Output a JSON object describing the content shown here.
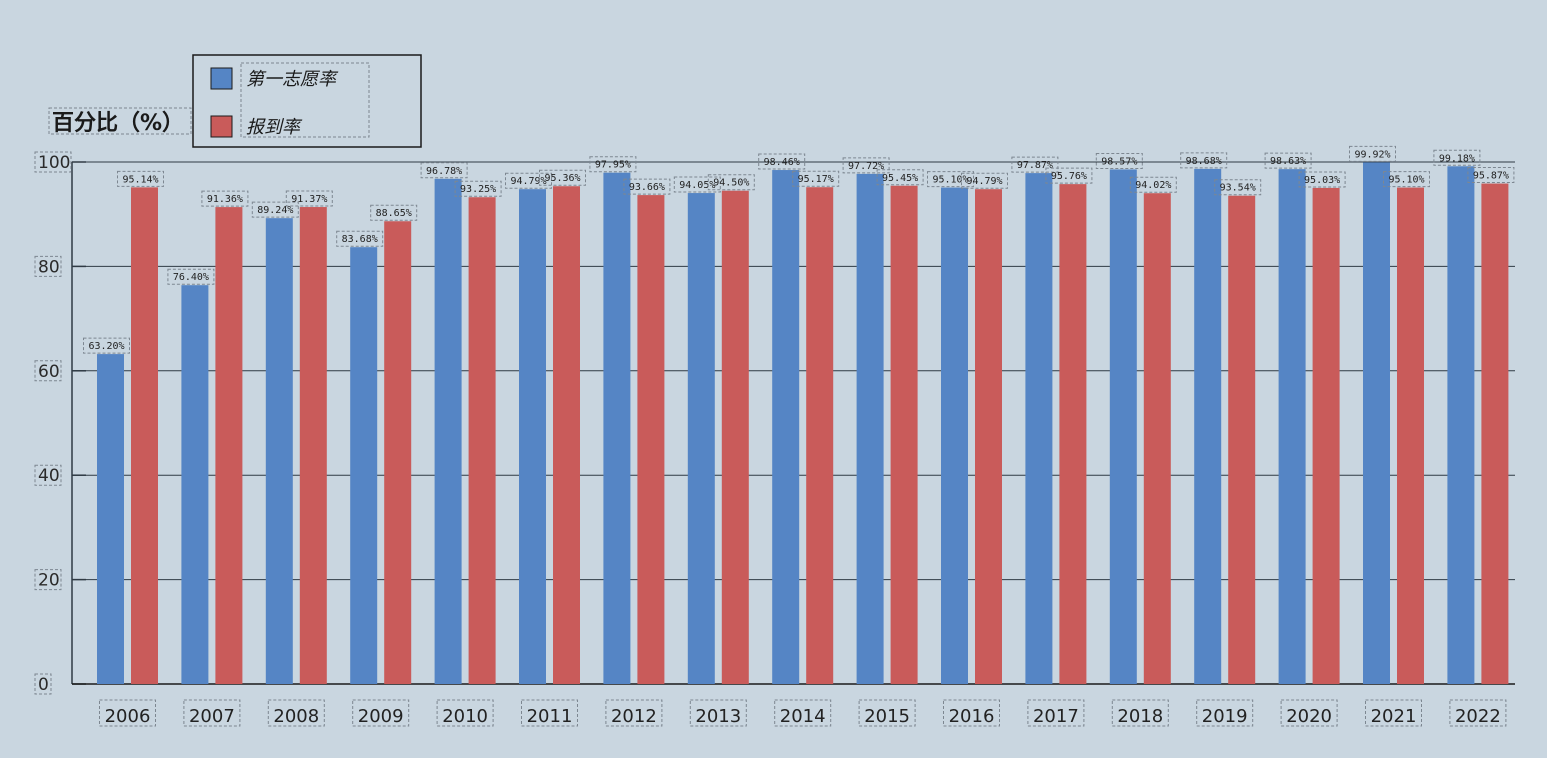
{
  "chart_data": {
    "type": "bar",
    "ylabel": "百分比（%）",
    "ylim": [
      0,
      100
    ],
    "yticks": [
      0,
      20,
      40,
      60,
      80,
      100
    ],
    "grid": true,
    "legend_position": "top-left",
    "categories": [
      "2006",
      "2007",
      "2008",
      "2009",
      "2010",
      "2011",
      "2012",
      "2013",
      "2014",
      "2015",
      "2016",
      "2017",
      "2018",
      "2019",
      "2020",
      "2021",
      "2022"
    ],
    "series": [
      {
        "name": "第一志愿率",
        "color": "#5585c5",
        "values": [
          63.2,
          76.4,
          89.24,
          83.68,
          96.78,
          94.79,
          97.95,
          94.05,
          98.46,
          97.72,
          95.1,
          97.87,
          98.57,
          98.68,
          98.63,
          99.92,
          99.18
        ],
        "labels": [
          "63.20%",
          "76.40%",
          "89.24%",
          "83.68%",
          "96.78%",
          "94.79%",
          "97.95%",
          "94.05%",
          "98.46%",
          "97.72%",
          "95.10%",
          "97.87%",
          "98.57%",
          "98.68%",
          "98.63%",
          "99.92%",
          "99.18%"
        ]
      },
      {
        "name": "报到率",
        "color": "#c95b5a",
        "values": [
          95.14,
          91.36,
          91.37,
          88.65,
          93.25,
          95.36,
          93.66,
          94.5,
          95.17,
          95.45,
          94.79,
          95.76,
          94.02,
          93.54,
          95.03,
          95.1,
          95.87
        ],
        "labels": [
          "95.14%",
          "91.36%",
          "91.37%",
          "88.65%",
          "93.25%",
          "95.36%",
          "93.66%",
          "94.50%",
          "95.17%",
          "95.45%",
          "94.79%",
          "95.76%",
          "94.02%",
          "93.54%",
          "95.03%",
          "95.10%",
          "95.87%"
        ]
      }
    ]
  }
}
